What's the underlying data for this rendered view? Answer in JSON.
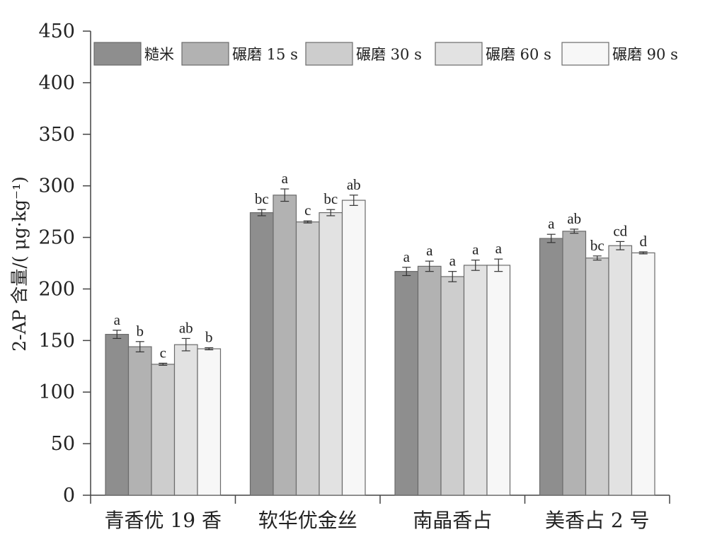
{
  "chart_data": {
    "type": "bar",
    "ylabel": "2-AP 含量/( μg·kg⁻¹)",
    "ylim": [
      0,
      450
    ],
    "yticks": [
      0,
      50,
      100,
      150,
      200,
      250,
      300,
      350,
      400,
      450
    ],
    "categories": [
      "青香优 19 香",
      "软华优金丝",
      "南晶香占",
      "美香占 2 号"
    ],
    "legend_position": "top",
    "series": [
      {
        "name": "糙米",
        "color": "#8e8e8e",
        "values": [
          156,
          274,
          217,
          249
        ],
        "errors": [
          4,
          3,
          4,
          4
        ],
        "labels": [
          "a",
          "bc",
          "a",
          "a"
        ]
      },
      {
        "name": "碾磨 15 s",
        "color": "#b2b2b2",
        "values": [
          144,
          291,
          222,
          256
        ],
        "errors": [
          5,
          6,
          5,
          2
        ],
        "labels": [
          "b",
          "a",
          "a",
          "ab"
        ]
      },
      {
        "name": "碾磨 30 s",
        "color": "#cdcdcd",
        "values": [
          127,
          265,
          212,
          230
        ],
        "errors": [
          1,
          1,
          5,
          2
        ],
        "labels": [
          "c",
          "c",
          "a",
          "bc"
        ]
      },
      {
        "name": "碾磨 60 s",
        "color": "#e2e2e2",
        "values": [
          146,
          274,
          223,
          242
        ],
        "errors": [
          6,
          3,
          5,
          4
        ],
        "labels": [
          "ab",
          "bc",
          "a",
          "cd"
        ]
      },
      {
        "name": "碾磨 90 s",
        "color": "#f7f7f7",
        "values": [
          142,
          286,
          223,
          235
        ],
        "errors": [
          1,
          5,
          6,
          1
        ],
        "labels": [
          "b",
          "ab",
          "a",
          "d"
        ]
      }
    ]
  }
}
